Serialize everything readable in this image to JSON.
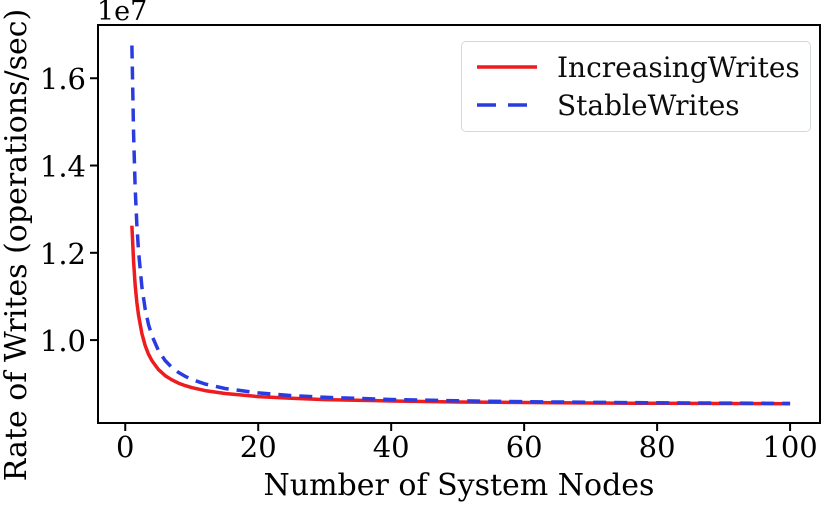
{
  "figure": {
    "background_color": "#ffffff",
    "text_color": "#000000"
  },
  "chart_data": {
    "type": "line",
    "title": "",
    "xlabel": "Number of System Nodes",
    "ylabel": "Rate of Writes (operations/sec)",
    "y_offset_label": "1e7",
    "grid": false,
    "legend_position": "upper right",
    "axis_color": "#000000",
    "xlim": [
      -4.1,
      104.5
    ],
    "ylim": [
      8100000,
      17220000
    ],
    "xticks": [
      0,
      20,
      40,
      60,
      80,
      100
    ],
    "xtick_labels": [
      "0",
      "20",
      "40",
      "60",
      "80",
      "100"
    ],
    "yticks": [
      10000000,
      12000000,
      14000000,
      16000000
    ],
    "ytick_labels": [
      "1.0",
      "1.2",
      "1.4",
      "1.6"
    ],
    "x": [
      1,
      1.25,
      1.5,
      1.75,
      2,
      2.5,
      3,
      3.5,
      4,
      5,
      6,
      7,
      8,
      9,
      10,
      12,
      15,
      20,
      25,
      30,
      40,
      50,
      60,
      70,
      80,
      90,
      100
    ],
    "series": [
      {
        "name": "IncreasingWrites",
        "color": "#ee1b1f",
        "style": "solid",
        "values": [
          12620000,
          11796000,
          11247000,
          10854000,
          10560000,
          10148000,
          9873000,
          9677000,
          9530000,
          9324000,
          9187000,
          9089000,
          9015000,
          8958000,
          8912000,
          8843000,
          8775000,
          8706000,
          8665000,
          8637000,
          8603000,
          8582000,
          8569000,
          8559000,
          8552000,
          8546000,
          8541000
        ]
      },
      {
        "name": "StableWrites",
        "color": "#2a3ce0",
        "style": "dashed",
        "values": [
          16750000,
          14712000,
          13461000,
          12620000,
          12018000,
          11216000,
          10708000,
          10358000,
          10103000,
          9756000,
          9532000,
          9375000,
          9259000,
          9170000,
          9099000,
          8994000,
          8891000,
          8789000,
          8728000,
          8688000,
          8638000,
          8608000,
          8588000,
          8574000,
          8564000,
          8555000,
          8549000
        ]
      }
    ]
  }
}
